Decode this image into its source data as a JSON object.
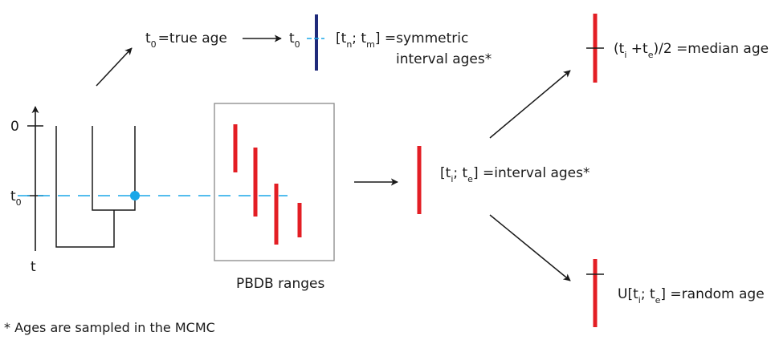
{
  "axis": {
    "zero": "0",
    "t0": "t",
    "t0_sub": "0",
    "t": "t"
  },
  "true_age": {
    "t": "t",
    "sub": "0",
    "rest": "=true age"
  },
  "symmetric": {
    "t0": "t",
    "t0_sub": "0",
    "line1": {
      "a": "[t",
      "a_sub": "n",
      "b": "; t",
      "b_sub": "m",
      "c": "] =symmetric"
    },
    "line2": "interval ages*"
  },
  "pbdb_label": "PBDB ranges",
  "interval": {
    "a": "[t",
    "a_sub": "i",
    "b": "; t",
    "b_sub": "e",
    "c": "] =interval ages*"
  },
  "median": {
    "a": "(t",
    "a_sub": "i",
    "b": " +t",
    "b_sub": "e",
    "c": ")/2 =median age"
  },
  "random": {
    "a": "U[t",
    "a_sub": "i",
    "b": "; t",
    "b_sub": "e",
    "c": "] =random age"
  },
  "footnote": "* Ages are sampled in the MCMC",
  "colors": {
    "red": "#e31e24",
    "navy": "#1f2a7a",
    "cyan": "#1aa7e8",
    "line": "#1a1a1a",
    "box": "#888888"
  }
}
